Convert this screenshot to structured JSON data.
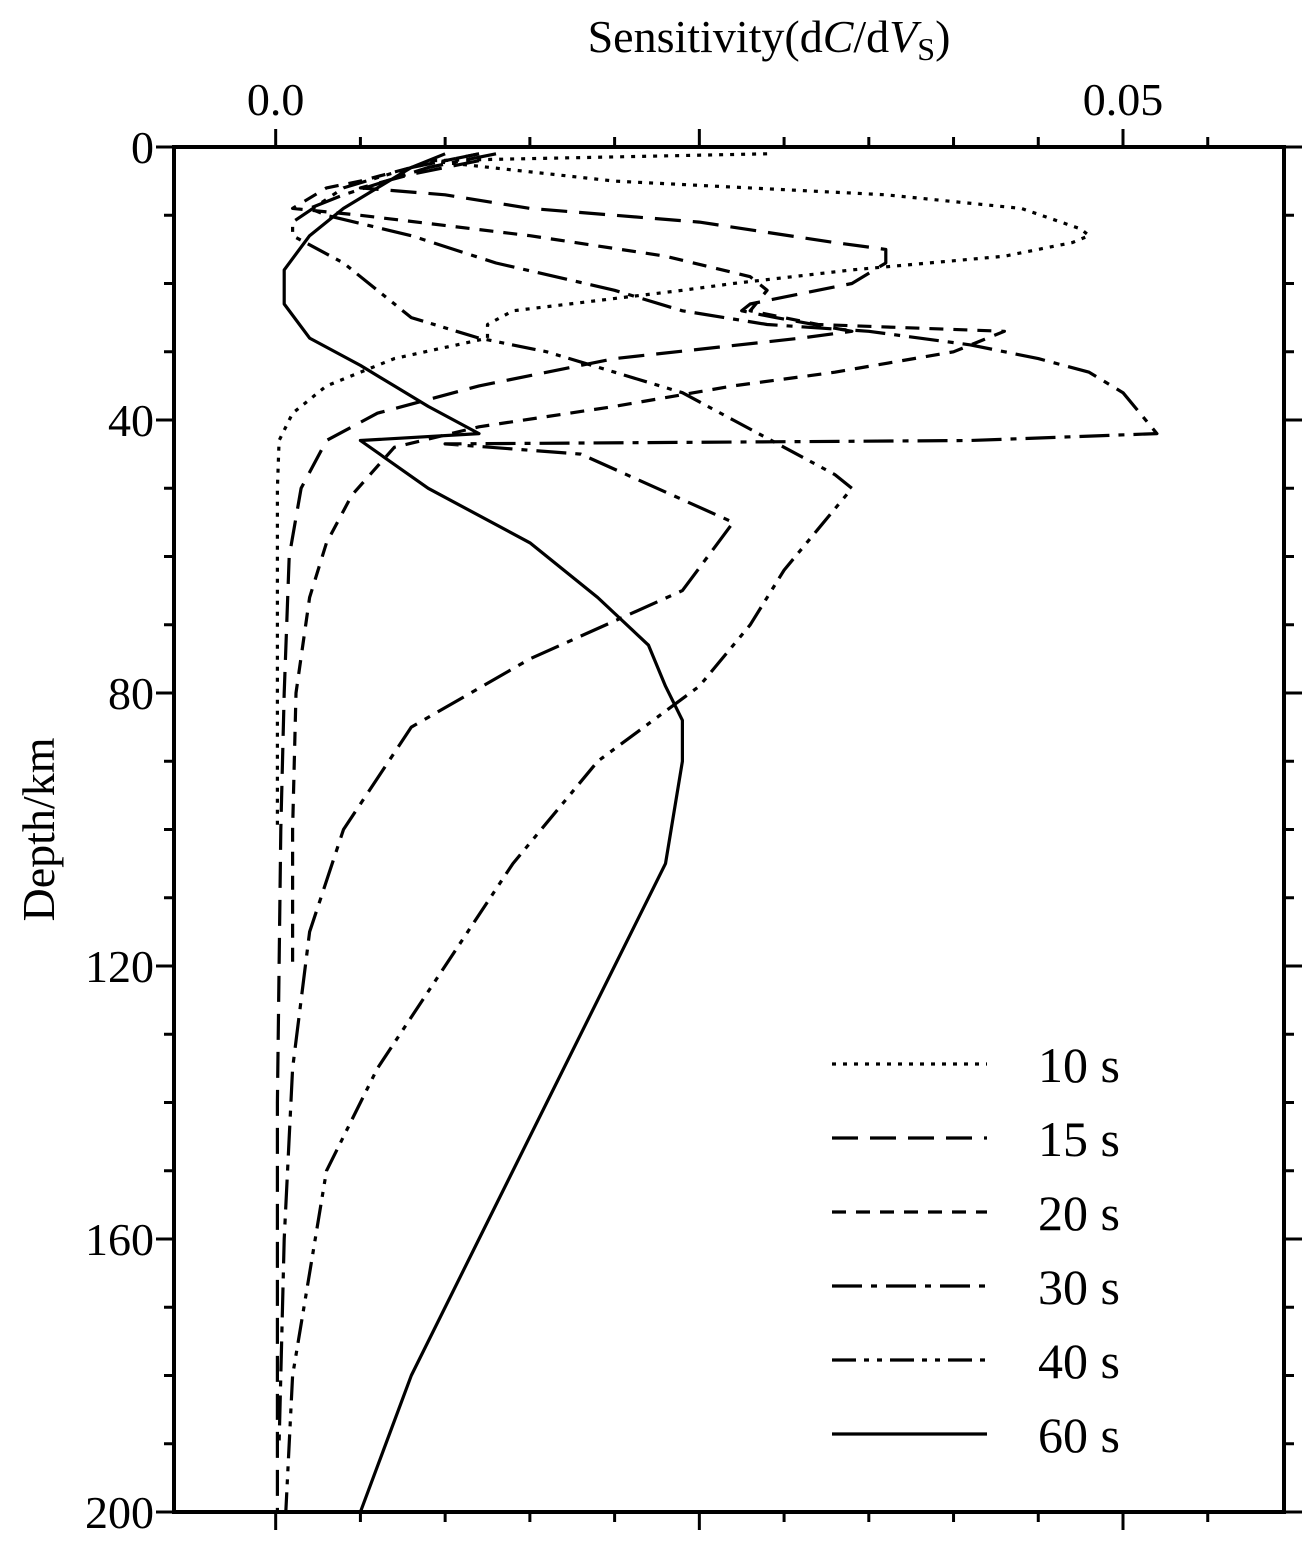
{
  "chart_data": {
    "type": "line",
    "title": "",
    "xlabel": "Sensitivity(dC/dVS)",
    "ylabel": "Depth/km",
    "xlim": [
      -0.006,
      0.0595
    ],
    "ylim": [
      0,
      200
    ],
    "y_inverted": true,
    "x_axis_position": "top",
    "x_major_ticks": [
      0.0,
      0.025,
      0.05
    ],
    "x_tick_labels": [
      "0.0",
      "",
      "0.05"
    ],
    "y_major_ticks": [
      0,
      40,
      80,
      120,
      160,
      200
    ],
    "y_tick_labels": [
      "0",
      "40",
      "80",
      "120",
      "160",
      "200"
    ],
    "grid": false,
    "legend_position": "bottom-right",
    "series": [
      {
        "name": "10 s",
        "dash": "dotted",
        "points": [
          [
            0.029,
            1
          ],
          [
            0.009,
            2
          ],
          [
            0.02,
            5
          ],
          [
            0.036,
            7
          ],
          [
            0.044,
            9
          ],
          [
            0.0475,
            12
          ],
          [
            0.048,
            13
          ],
          [
            0.047,
            14
          ],
          [
            0.043,
            16
          ],
          [
            0.034,
            18
          ],
          [
            0.027,
            20
          ],
          [
            0.024,
            21
          ],
          [
            0.014,
            24
          ],
          [
            0.0125,
            26
          ],
          [
            0.0125,
            28
          ],
          [
            0.007,
            31
          ],
          [
            0.003,
            35
          ],
          [
            0.001,
            39
          ],
          [
            0.0002,
            43
          ],
          [
            0.0001,
            50
          ],
          [
            0.0001,
            70
          ],
          [
            0.0001,
            100
          ]
        ]
      },
      {
        "name": "15 s",
        "dash": "dashed",
        "points": [
          [
            0.012,
            2
          ],
          [
            0.008,
            4
          ],
          [
            0.005,
            6
          ],
          [
            0.01,
            7
          ],
          [
            0.015,
            9
          ],
          [
            0.025,
            11
          ],
          [
            0.033,
            14
          ],
          [
            0.036,
            15
          ],
          [
            0.036,
            17
          ],
          [
            0.034,
            20
          ],
          [
            0.03,
            22
          ],
          [
            0.028,
            23
          ],
          [
            0.0275,
            24
          ],
          [
            0.0295,
            25
          ],
          [
            0.034,
            27
          ],
          [
            0.031,
            28
          ],
          [
            0.02,
            31
          ],
          [
            0.012,
            35
          ],
          [
            0.006,
            39
          ],
          [
            0.003,
            43
          ],
          [
            0.0015,
            50
          ],
          [
            0.0008,
            60
          ],
          [
            0.0005,
            80
          ],
          [
            0.0003,
            100
          ],
          [
            0.0001,
            140
          ],
          [
            0.0001,
            200
          ]
        ]
      },
      {
        "name": "20 s",
        "dash": "short-dash",
        "points": [
          [
            0.012,
            1
          ],
          [
            0.008,
            3
          ],
          [
            0.005,
            5
          ],
          [
            0.003,
            6
          ],
          [
            0.001,
            9
          ],
          [
            0.005,
            10
          ],
          [
            0.015,
            13
          ],
          [
            0.023,
            16
          ],
          [
            0.028,
            19
          ],
          [
            0.029,
            21
          ],
          [
            0.028,
            24
          ],
          [
            0.032,
            26
          ],
          [
            0.043,
            27
          ],
          [
            0.04,
            30
          ],
          [
            0.033,
            33
          ],
          [
            0.027,
            35
          ],
          [
            0.02,
            38
          ],
          [
            0.012,
            41
          ],
          [
            0.007,
            44
          ],
          [
            0.0045,
            51
          ],
          [
            0.003,
            58
          ],
          [
            0.002,
            66
          ],
          [
            0.0012,
            80
          ],
          [
            0.001,
            100
          ],
          [
            0.001,
            120
          ]
        ]
      },
      {
        "name": "30 s",
        "dash": "dash-dot",
        "points": [
          [
            0.013,
            1
          ],
          [
            0.009,
            3
          ],
          [
            0.004,
            7
          ],
          [
            0.002,
            9
          ],
          [
            0.003,
            10
          ],
          [
            0.008,
            13
          ],
          [
            0.013,
            17
          ],
          [
            0.02,
            21
          ],
          [
            0.024,
            24
          ],
          [
            0.029,
            26
          ],
          [
            0.035,
            27
          ],
          [
            0.041,
            29
          ],
          [
            0.045,
            31
          ],
          [
            0.048,
            33
          ],
          [
            0.05,
            36
          ],
          [
            0.051,
            39
          ],
          [
            0.052,
            42
          ],
          [
            0.041,
            43
          ],
          [
            0.01,
            43.5
          ],
          [
            0.018,
            45
          ],
          [
            0.027,
            55
          ],
          [
            0.024,
            65
          ],
          [
            0.015,
            75
          ],
          [
            0.008,
            85
          ],
          [
            0.004,
            100
          ],
          [
            0.002,
            115
          ],
          [
            0.001,
            135
          ],
          [
            0.0005,
            160
          ],
          [
            0.0002,
            190
          ]
        ]
      },
      {
        "name": "40 s",
        "dash": "dash-dot-dot",
        "points": [
          [
            0.012,
            1
          ],
          [
            0.008,
            3
          ],
          [
            0.004,
            6
          ],
          [
            0.001,
            11
          ],
          [
            0.001,
            13
          ],
          [
            0.004,
            17
          ],
          [
            0.006,
            21
          ],
          [
            0.008,
            25
          ],
          [
            0.012,
            28
          ],
          [
            0.016,
            30
          ],
          [
            0.02,
            33
          ],
          [
            0.024,
            36
          ],
          [
            0.027,
            40
          ],
          [
            0.03,
            44
          ],
          [
            0.033,
            48
          ],
          [
            0.034,
            50
          ],
          [
            0.032,
            56
          ],
          [
            0.03,
            62
          ],
          [
            0.028,
            70
          ],
          [
            0.025,
            79
          ],
          [
            0.019,
            90
          ],
          [
            0.014,
            105
          ],
          [
            0.01,
            120
          ],
          [
            0.006,
            135
          ],
          [
            0.003,
            150
          ],
          [
            0.002,
            165
          ],
          [
            0.001,
            180
          ],
          [
            0.0006,
            200
          ]
        ]
      },
      {
        "name": "60 s",
        "dash": "solid",
        "points": [
          [
            0.01,
            1
          ],
          [
            0.008,
            3
          ],
          [
            0.006,
            6
          ],
          [
            0.004,
            9
          ],
          [
            0.002,
            13
          ],
          [
            0.0005,
            18
          ],
          [
            0.0005,
            23
          ],
          [
            0.002,
            28
          ],
          [
            0.005,
            32
          ],
          [
            0.007,
            35
          ],
          [
            0.009,
            38
          ],
          [
            0.012,
            42
          ],
          [
            0.005,
            43
          ],
          [
            0.009,
            50
          ],
          [
            0.015,
            58
          ],
          [
            0.019,
            66
          ],
          [
            0.022,
            73
          ],
          [
            0.023,
            79
          ],
          [
            0.024,
            84
          ],
          [
            0.024,
            90
          ],
          [
            0.023,
            105
          ],
          [
            0.02,
            120
          ],
          [
            0.016,
            140
          ],
          [
            0.012,
            160
          ],
          [
            0.008,
            180
          ],
          [
            0.005,
            200
          ]
        ]
      }
    ]
  }
}
